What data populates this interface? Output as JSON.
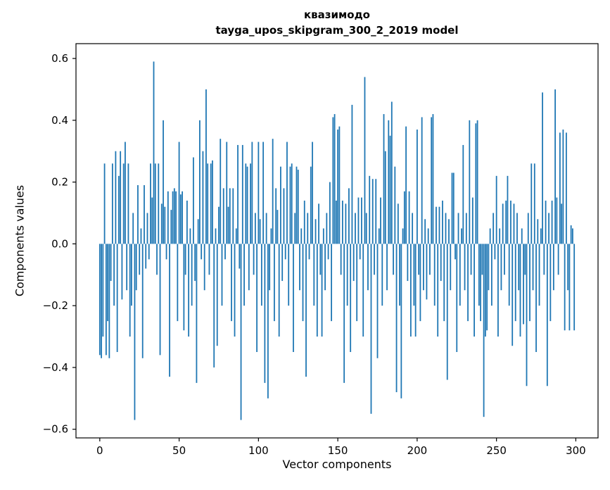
{
  "figure": {
    "title_line1": "квазимодо",
    "title_line2": "tayga_upos_skipgram_300_2_2019 model",
    "xlabel": "Vector components",
    "ylabel": "Components values"
  },
  "chart_data": {
    "type": "bar",
    "title": "квазимодо — tayga_upos_skipgram_300_2_2019 model",
    "xlabel": "Vector components",
    "ylabel": "Components values",
    "bar_color": "#1f77b4",
    "grid": false,
    "legend": "none",
    "xlim": [
      -15,
      314
    ],
    "ylim": [
      -0.628,
      0.648
    ],
    "xticks": [
      0,
      50,
      100,
      150,
      200,
      250,
      300
    ],
    "yticks": [
      -0.6,
      -0.4,
      -0.2,
      0.0,
      0.2,
      0.4,
      0.6
    ],
    "x_start": 0,
    "values": [
      -0.36,
      -0.37,
      -0.3,
      0.26,
      -0.36,
      -0.25,
      -0.37,
      -0.12,
      0.26,
      -0.2,
      0.3,
      -0.35,
      0.22,
      0.3,
      -0.18,
      0.26,
      0.33,
      -0.15,
      0.26,
      -0.3,
      -0.2,
      0.1,
      -0.57,
      -0.15,
      0.19,
      -0.1,
      0.05,
      -0.37,
      0.19,
      -0.08,
      0.1,
      -0.05,
      0.26,
      0.15,
      0.59,
      0.26,
      -0.1,
      0.26,
      -0.36,
      0.13,
      0.4,
      0.12,
      -0.05,
      0.17,
      -0.43,
      0.11,
      0.17,
      0.18,
      0.17,
      -0.25,
      0.33,
      0.16,
      0.17,
      -0.28,
      -0.1,
      0.14,
      -0.3,
      0.05,
      -0.2,
      0.28,
      -0.12,
      -0.45,
      0.08,
      0.4,
      -0.05,
      0.3,
      -0.15,
      0.5,
      0.26,
      -0.1,
      0.26,
      0.27,
      -0.4,
      0.05,
      -0.33,
      0.12,
      0.34,
      -0.2,
      0.18,
      -0.05,
      0.33,
      0.12,
      0.18,
      -0.25,
      0.18,
      -0.3,
      0.05,
      0.32,
      -0.08,
      -0.57,
      0.32,
      -0.2,
      0.26,
      0.25,
      -0.15,
      0.26,
      0.33,
      -0.1,
      0.1,
      -0.35,
      0.33,
      0.08,
      -0.2,
      0.33,
      -0.45,
      0.1,
      -0.5,
      -0.15,
      0.05,
      0.34,
      -0.25,
      0.18,
      0.11,
      -0.3,
      0.25,
      -0.12,
      0.18,
      -0.05,
      0.33,
      -0.2,
      0.25,
      0.26,
      -0.35,
      0.1,
      0.25,
      0.24,
      -0.15,
      0.05,
      -0.25,
      0.14,
      -0.43,
      0.1,
      -0.05,
      0.25,
      0.33,
      -0.2,
      0.08,
      -0.3,
      0.13,
      -0.1,
      -0.3,
      0.05,
      -0.15,
      0.1,
      -0.05,
      0.2,
      -0.25,
      0.41,
      0.42,
      0.14,
      0.37,
      0.38,
      -0.1,
      0.14,
      -0.45,
      0.13,
      -0.2,
      0.18,
      -0.35,
      0.45,
      -0.12,
      0.1,
      -0.25,
      0.15,
      -0.05,
      0.15,
      -0.3,
      0.54,
      0.1,
      -0.15,
      0.22,
      -0.55,
      0.21,
      -0.1,
      0.21,
      -0.37,
      0.05,
      0.15,
      -0.2,
      0.42,
      0.3,
      -0.15,
      0.4,
      0.35,
      0.46,
      -0.1,
      0.25,
      -0.48,
      0.13,
      -0.2,
      -0.5,
      0.05,
      0.17,
      0.38,
      -0.12,
      0.17,
      -0.3,
      0.1,
      -0.2,
      -0.3,
      0.37,
      -0.1,
      -0.25,
      0.41,
      -0.15,
      0.08,
      -0.18,
      0.05,
      -0.1,
      0.41,
      0.42,
      -0.2,
      0.12,
      -0.3,
      0.12,
      -0.12,
      0.14,
      -0.25,
      0.1,
      -0.44,
      0.08,
      -0.15,
      0.23,
      0.23,
      -0.05,
      -0.35,
      0.1,
      -0.2,
      0.05,
      0.32,
      -0.15,
      0.1,
      -0.25,
      0.4,
      -0.1,
      0.15,
      -0.3,
      0.39,
      0.4,
      -0.2,
      -0.25,
      -0.1,
      -0.56,
      -0.3,
      -0.28,
      -0.15,
      0.05,
      -0.2,
      0.1,
      -0.05,
      0.22,
      -0.3,
      0.05,
      -0.15,
      0.13,
      -0.1,
      0.14,
      0.22,
      -0.2,
      0.14,
      -0.33,
      0.13,
      -0.25,
      0.1,
      -0.15,
      -0.3,
      0.05,
      -0.26,
      -0.1,
      -0.46,
      0.1,
      -0.25,
      0.26,
      -0.15,
      0.26,
      -0.35,
      0.08,
      -0.2,
      0.05,
      0.49,
      -0.1,
      0.14,
      -0.46,
      0.1,
      -0.25,
      0.14,
      -0.15,
      0.5,
      0.15,
      -0.1,
      0.36,
      0.13,
      0.37,
      -0.28,
      0.36,
      -0.15,
      -0.28,
      0.06,
      0.05,
      -0.28
    ]
  }
}
